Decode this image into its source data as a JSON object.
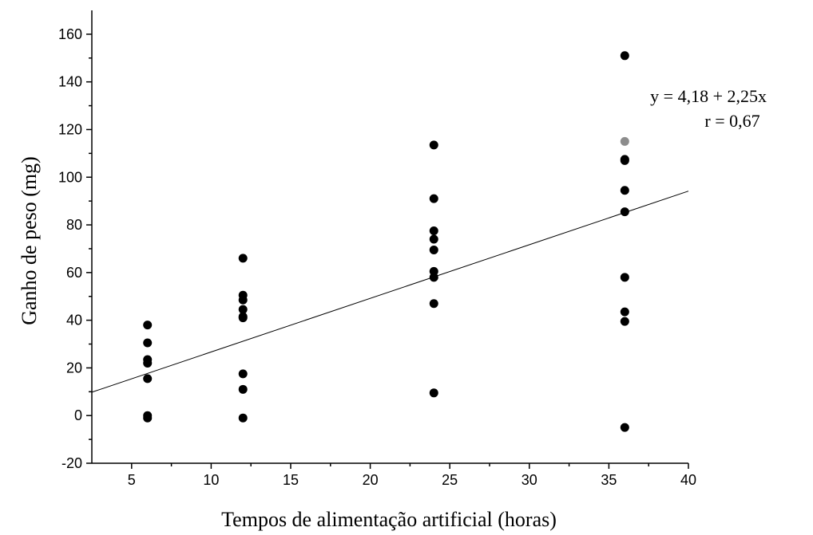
{
  "chart_data": {
    "type": "scatter",
    "title": "",
    "xlabel": "Tempos de alimentação artificial (horas)",
    "ylabel": "Ganho de peso (mg)",
    "xlim": [
      2.5,
      40
    ],
    "ylim": [
      -20,
      170
    ],
    "x_ticks": [
      5,
      10,
      15,
      20,
      25,
      30,
      35,
      40
    ],
    "y_ticks": [
      -20,
      0,
      20,
      40,
      60,
      80,
      100,
      120,
      140,
      160
    ],
    "grid": false,
    "points": [
      {
        "x": 6,
        "y": 38
      },
      {
        "x": 6,
        "y": 30.5
      },
      {
        "x": 6,
        "y": 23.5
      },
      {
        "x": 6,
        "y": 22
      },
      {
        "x": 6,
        "y": 15.5
      },
      {
        "x": 6,
        "y": 0
      },
      {
        "x": 6,
        "y": -1
      },
      {
        "x": 12,
        "y": 66
      },
      {
        "x": 12,
        "y": 50.5
      },
      {
        "x": 12,
        "y": 48.5
      },
      {
        "x": 12,
        "y": 44.5
      },
      {
        "x": 12,
        "y": 41.5
      },
      {
        "x": 12,
        "y": 41
      },
      {
        "x": 12,
        "y": 17.5
      },
      {
        "x": 12,
        "y": 11
      },
      {
        "x": 12,
        "y": -1
      },
      {
        "x": 24,
        "y": 113.5
      },
      {
        "x": 24,
        "y": 91
      },
      {
        "x": 24,
        "y": 77.5
      },
      {
        "x": 24,
        "y": 74
      },
      {
        "x": 24,
        "y": 69.5
      },
      {
        "x": 24,
        "y": 60.5
      },
      {
        "x": 24,
        "y": 58
      },
      {
        "x": 24,
        "y": 47
      },
      {
        "x": 24,
        "y": 9.5
      },
      {
        "x": 36,
        "y": 151
      },
      {
        "x": 36,
        "y": 115,
        "color": "#8c8c8c"
      },
      {
        "x": 36,
        "y": 107.5
      },
      {
        "x": 36,
        "y": 107
      },
      {
        "x": 36,
        "y": 94.5
      },
      {
        "x": 36,
        "y": 85.5
      },
      {
        "x": 36,
        "y": 58
      },
      {
        "x": 36,
        "y": 43.5
      },
      {
        "x": 36,
        "y": 39.5
      },
      {
        "x": 36,
        "y": -5
      }
    ],
    "fit_line": {
      "intercept": 4.18,
      "slope": 2.25
    },
    "annotations": [
      "y = 4,18 + 2,25x",
      "r = 0,67"
    ],
    "colors": {
      "point": "#000000",
      "line": "#000000"
    }
  }
}
